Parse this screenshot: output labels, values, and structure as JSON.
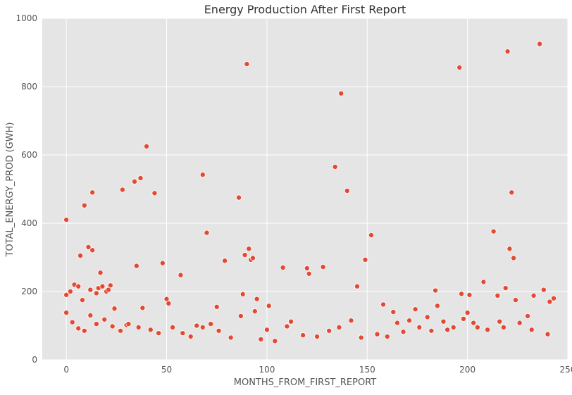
{
  "chart_data": {
    "type": "scatter",
    "title": "Energy Production After First Report",
    "xlabel": "MONTHS_FROM_FIRST_REPORT",
    "ylabel": "TOTAL_ENERGY_PROD (GWH)",
    "xlim": [
      -12,
      250
    ],
    "ylim": [
      0,
      1000
    ],
    "xticks": [
      0,
      50,
      100,
      150,
      200,
      250
    ],
    "yticks": [
      0,
      200,
      400,
      600,
      800,
      1000
    ],
    "grid": true,
    "style": "ggplot",
    "colors": {
      "background": "#e5e5e5",
      "grid": "#ffffff",
      "marker": "#e24a33",
      "marker_edge": "#ffffff",
      "text": "#555555",
      "title": "#333333"
    },
    "series": [
      {
        "points": [
          [
            0,
            410
          ],
          [
            0,
            190
          ],
          [
            0,
            138
          ],
          [
            2,
            200
          ],
          [
            4,
            220
          ],
          [
            6,
            215
          ],
          [
            7,
            305
          ],
          [
            8,
            175
          ],
          [
            9,
            452
          ],
          [
            11,
            330
          ],
          [
            12,
            205
          ],
          [
            13,
            490
          ],
          [
            13,
            321
          ],
          [
            15,
            195
          ],
          [
            16,
            210
          ],
          [
            17,
            255
          ],
          [
            18,
            215
          ],
          [
            20,
            200
          ],
          [
            21,
            205
          ],
          [
            22,
            218
          ],
          [
            24,
            150
          ],
          [
            28,
            498
          ],
          [
            30,
            102
          ],
          [
            34,
            522
          ],
          [
            35,
            275
          ],
          [
            37,
            532
          ],
          [
            38,
            152
          ],
          [
            40,
            625
          ],
          [
            44,
            488
          ],
          [
            48,
            283
          ],
          [
            50,
            178
          ],
          [
            51,
            165
          ],
          [
            57,
            248
          ],
          [
            65,
            100
          ],
          [
            68,
            542
          ],
          [
            70,
            372
          ],
          [
            75,
            155
          ],
          [
            79,
            290
          ],
          [
            86,
            475
          ],
          [
            87,
            128
          ],
          [
            88,
            192
          ],
          [
            89,
            307
          ],
          [
            90,
            866
          ],
          [
            91,
            325
          ],
          [
            92,
            293
          ],
          [
            93,
            298
          ],
          [
            94,
            142
          ],
          [
            95,
            178
          ],
          [
            100,
            88
          ],
          [
            101,
            158
          ],
          [
            108,
            270
          ],
          [
            110,
            98
          ],
          [
            120,
            268
          ],
          [
            121,
            252
          ],
          [
            128,
            272
          ],
          [
            134,
            565
          ],
          [
            137,
            780
          ],
          [
            140,
            495
          ],
          [
            145,
            215
          ],
          [
            149,
            293
          ],
          [
            152,
            365
          ],
          [
            158,
            162
          ],
          [
            163,
            140
          ],
          [
            165,
            108
          ],
          [
            171,
            115
          ],
          [
            174,
            148
          ],
          [
            180,
            125
          ],
          [
            184,
            203
          ],
          [
            185,
            158
          ],
          [
            190,
            88
          ],
          [
            196,
            856
          ],
          [
            197,
            193
          ],
          [
            200,
            138
          ],
          [
            201,
            190
          ],
          [
            205,
            95
          ],
          [
            208,
            228
          ],
          [
            213,
            376
          ],
          [
            215,
            188
          ],
          [
            218,
            95
          ],
          [
            219,
            210
          ],
          [
            220,
            903
          ],
          [
            221,
            325
          ],
          [
            222,
            490
          ],
          [
            223,
            298
          ],
          [
            224,
            175
          ],
          [
            230,
            128
          ],
          [
            233,
            188
          ],
          [
            236,
            925
          ],
          [
            238,
            205
          ],
          [
            241,
            170
          ],
          [
            243,
            180
          ],
          [
            3,
            110
          ],
          [
            6,
            92
          ],
          [
            9,
            85
          ],
          [
            12,
            130
          ],
          [
            15,
            105
          ],
          [
            19,
            118
          ],
          [
            23,
            98
          ],
          [
            27,
            85
          ],
          [
            31,
            105
          ],
          [
            36,
            95
          ],
          [
            42,
            88
          ],
          [
            46,
            78
          ],
          [
            53,
            95
          ],
          [
            58,
            78
          ],
          [
            62,
            68
          ],
          [
            68,
            95
          ],
          [
            72,
            105
          ],
          [
            76,
            85
          ],
          [
            82,
            65
          ],
          [
            97,
            60
          ],
          [
            104,
            55
          ],
          [
            112,
            112
          ],
          [
            118,
            72
          ],
          [
            125,
            68
          ],
          [
            131,
            85
          ],
          [
            136,
            95
          ],
          [
            142,
            115
          ],
          [
            147,
            65
          ],
          [
            155,
            75
          ],
          [
            160,
            68
          ],
          [
            168,
            82
          ],
          [
            176,
            95
          ],
          [
            182,
            85
          ],
          [
            188,
            112
          ],
          [
            193,
            95
          ],
          [
            198,
            120
          ],
          [
            203,
            108
          ],
          [
            210,
            88
          ],
          [
            216,
            112
          ],
          [
            226,
            108
          ],
          [
            232,
            88
          ],
          [
            240,
            75
          ]
        ]
      }
    ]
  }
}
